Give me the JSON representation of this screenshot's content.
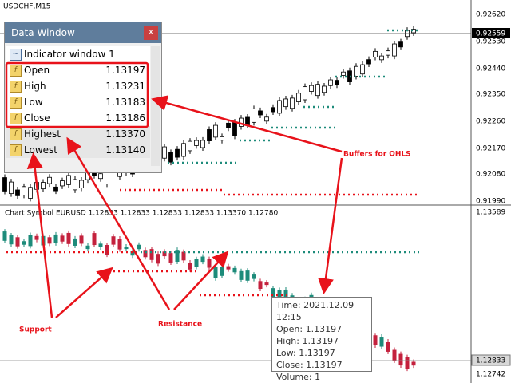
{
  "top_chart": {
    "symbol": "USDCHF,M15",
    "current_price": "0.92559",
    "price_labels": [
      "0.92620",
      "0.92530",
      "0.92440",
      "0.92350",
      "0.92260",
      "0.92170",
      "0.92080",
      "0.91990"
    ]
  },
  "bottom_chart": {
    "label": "Chart Symbol EURUSD 1.12833 1.12833 1.12833 1.12833 1.13370 1.12780",
    "current_price": "1.12833",
    "price_labels": [
      "1.13589",
      "1.12742"
    ]
  },
  "data_window": {
    "title": "Data Window",
    "close": "x",
    "section": "Indicator window 1",
    "rows": [
      {
        "name": "Open",
        "value": "1.13197"
      },
      {
        "name": "High",
        "value": "1.13231"
      },
      {
        "name": "Low",
        "value": "1.13183"
      },
      {
        "name": "Close",
        "value": "1.13186"
      },
      {
        "name": "Highest",
        "value": "1.13370"
      },
      {
        "name": "Lowest",
        "value": "1.13140"
      }
    ]
  },
  "tooltip": {
    "lines": [
      "Time: 2021.12.09 12:15",
      "Open: 1.13197",
      "High: 1.13197",
      "Low: 1.13197",
      "Close: 1.13197",
      "Volume: 1"
    ]
  },
  "annotations": {
    "buffers": "Buffers for OHLS",
    "support": "Support",
    "resistance": "Resistance"
  }
}
